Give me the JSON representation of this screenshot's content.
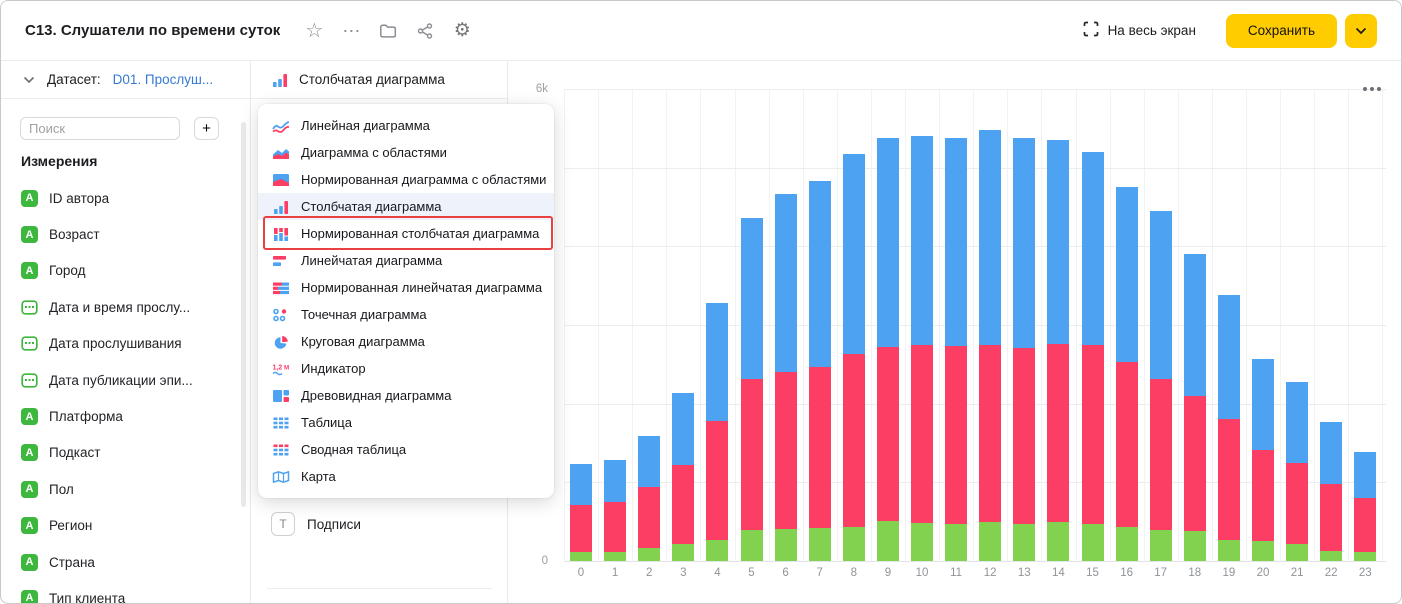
{
  "header": {
    "title": "C13. Слушатели по времени суток",
    "fullscreen_label": "На весь экран",
    "save_label": "Сохранить"
  },
  "icons_unicode": {
    "star": "☆",
    "ellipsis": "⋯",
    "gear": "⚙"
  },
  "sidebar": {
    "dataset_label": "Датасет:",
    "dataset_name": "D01. Прослуш...",
    "search_placeholder": "Поиск",
    "add_button_label": "+",
    "section_title": "Измерения",
    "field_icon_letter": "A",
    "fields": [
      {
        "name": "ID автора",
        "type": "string"
      },
      {
        "name": "Возраст",
        "type": "string"
      },
      {
        "name": "Город",
        "type": "string"
      },
      {
        "name": "Дата и время прослу...",
        "type": "date"
      },
      {
        "name": "Дата прослушивания",
        "type": "date"
      },
      {
        "name": "Дата публикации эпи...",
        "type": "date"
      },
      {
        "name": "Платформа",
        "type": "string"
      },
      {
        "name": "Подкаст",
        "type": "string"
      },
      {
        "name": "Пол",
        "type": "string"
      },
      {
        "name": "Регион",
        "type": "string"
      },
      {
        "name": "Страна",
        "type": "string"
      },
      {
        "name": "Тип клиента",
        "type": "string"
      }
    ]
  },
  "viz_panel": {
    "selected_type": "Столбчатая диаграмма",
    "labels_section_label": "Подписи",
    "labels_icon_letter": "T"
  },
  "dropdown": {
    "items": [
      {
        "label": "Линейная диаграмма",
        "icon": "line-chart",
        "selected": false,
        "annotated": false
      },
      {
        "label": "Диаграмма с областями",
        "icon": "area-chart",
        "selected": false,
        "annotated": false
      },
      {
        "label": "Нормированная диаграмма с областями",
        "icon": "area-normalized-chart",
        "selected": false,
        "annotated": false
      },
      {
        "label": "Столбчатая диаграмма",
        "icon": "column-chart",
        "selected": true,
        "annotated": false
      },
      {
        "label": "Нормированная столбчатая диаграмма",
        "icon": "column-normalized-chart",
        "selected": false,
        "annotated": true
      },
      {
        "label": "Линейчатая диаграмма",
        "icon": "bar-chart",
        "selected": false,
        "annotated": false
      },
      {
        "label": "Нормированная линейчатая диаграмма",
        "icon": "bar-normalized-chart",
        "selected": false,
        "annotated": false
      },
      {
        "label": "Точечная диаграмма",
        "icon": "scatter-chart",
        "selected": false,
        "annotated": false
      },
      {
        "label": "Круговая диаграмма",
        "icon": "pie-chart",
        "selected": false,
        "annotated": false
      },
      {
        "label": "Индикатор",
        "icon": "indicator",
        "selected": false,
        "annotated": false
      },
      {
        "label": "Древовидная диаграмма",
        "icon": "treemap-chart",
        "selected": false,
        "annotated": false
      },
      {
        "label": "Таблица",
        "icon": "table",
        "selected": false,
        "annotated": false
      },
      {
        "label": "Сводная таблица",
        "icon": "pivot-table",
        "selected": false,
        "annotated": false
      },
      {
        "label": "Карта",
        "icon": "map",
        "selected": false,
        "annotated": false
      }
    ]
  },
  "chart_data": {
    "type": "bar",
    "stacked": true,
    "stack_order": "bottom-to-top",
    "x": [
      "0",
      "1",
      "2",
      "3",
      "4",
      "5",
      "6",
      "7",
      "8",
      "9",
      "10",
      "11",
      "12",
      "13",
      "14",
      "15",
      "16",
      "17",
      "18",
      "19",
      "20",
      "21",
      "22",
      "23"
    ],
    "series": [
      {
        "name": "green",
        "color": "#82d14f",
        "values": [
          120,
          115,
          160,
          220,
          270,
          400,
          405,
          415,
          430,
          505,
          485,
          470,
          495,
          470,
          495,
          470,
          430,
          400,
          385,
          270,
          250,
          210,
          130,
          115
        ]
      },
      {
        "name": "red",
        "color": "#fc3d64",
        "values": [
          590,
          635,
          780,
          995,
          1515,
          1915,
          1995,
          2050,
          2205,
          2215,
          2260,
          2265,
          2245,
          2235,
          2260,
          2280,
          2100,
          1910,
          1710,
          1530,
          1155,
          1040,
          850,
          685
        ]
      },
      {
        "name": "blue",
        "color": "#4da2f2",
        "values": [
          520,
          540,
          645,
          920,
          1500,
          2050,
          2265,
          2370,
          2540,
          2655,
          2660,
          2645,
          2745,
          2670,
          2595,
          2455,
          2230,
          2140,
          1805,
          1585,
          1165,
          1030,
          790,
          590
        ]
      }
    ],
    "ylim": [
      0,
      6000
    ],
    "y_ticks": [
      "0",
      "1k",
      "2k",
      "3k",
      "4k",
      "5k",
      "6k"
    ],
    "y_ticks_visible": [
      "0",
      "6k"
    ],
    "grid": true,
    "legend": false
  },
  "colors": {
    "accent_yellow": "#ffcc00",
    "link_blue": "#377ad3",
    "field_green": "#3eb73f",
    "bar_blue": "#4da2f2",
    "bar_red": "#fc3d64",
    "bar_green": "#82d14f",
    "annotation_red": "#e94040",
    "selected_item_bg": "#eef3fb"
  }
}
